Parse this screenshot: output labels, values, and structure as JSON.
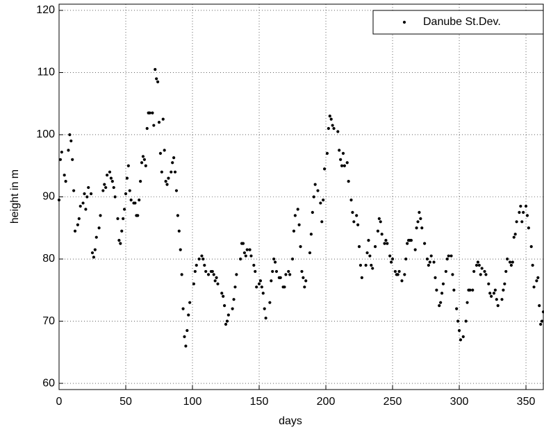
{
  "chart_data": {
    "type": "scatter",
    "xlabel": "days",
    "ylabel": "height in m",
    "xlim": [
      0,
      363
    ],
    "ylim": [
      59,
      121
    ],
    "xticks": [
      0,
      50,
      100,
      150,
      200,
      250,
      300,
      350
    ],
    "yticks": [
      60,
      70,
      80,
      90,
      100,
      110,
      120
    ],
    "grid": true,
    "legend": "northeast",
    "series": [
      {
        "name": "Danube St.Dev.",
        "color": "#000000",
        "x": [
          0,
          1,
          2,
          4,
          5,
          7,
          8,
          9,
          10,
          11,
          12,
          14,
          15,
          16,
          18,
          19,
          20,
          21,
          22,
          24,
          25,
          26,
          27,
          28,
          30,
          31,
          33,
          34,
          35,
          36,
          38,
          39,
          40,
          41,
          42,
          44,
          45,
          46,
          47,
          48,
          49,
          50,
          51,
          52,
          53,
          54,
          56,
          57,
          58,
          59,
          60,
          61,
          62,
          63,
          64,
          65,
          66,
          67,
          68,
          70,
          71,
          72,
          73,
          74,
          75,
          76,
          77,
          78,
          79,
          80,
          81,
          82,
          84,
          85,
          86,
          87,
          88,
          89,
          90,
          91,
          92,
          93,
          94,
          95,
          96,
          97,
          98,
          101,
          102,
          103,
          105,
          107,
          108,
          109,
          110,
          112,
          114,
          115,
          116,
          117,
          118,
          119,
          122,
          123,
          124,
          125,
          126,
          127,
          130,
          131,
          132,
          133,
          136,
          137,
          138,
          139,
          140,
          141,
          143,
          144,
          146,
          147,
          148,
          150,
          151,
          152,
          153,
          154,
          155,
          158,
          159,
          160,
          161,
          162,
          163,
          165,
          166,
          168,
          169,
          170,
          172,
          173,
          175,
          176,
          177,
          179,
          180,
          181,
          182,
          183,
          184,
          185,
          188,
          189,
          190,
          191,
          192,
          194,
          196,
          197,
          198,
          199,
          201,
          202,
          203,
          204,
          205,
          206,
          209,
          210,
          211,
          212,
          213,
          214,
          216,
          217,
          219,
          220,
          221,
          223,
          224,
          225,
          226,
          227,
          230,
          231,
          232,
          233,
          234,
          235,
          237,
          239,
          240,
          241,
          242,
          244,
          245,
          246,
          248,
          249,
          250,
          252,
          253,
          254,
          255,
          257,
          259,
          260,
          261,
          262,
          263,
          264,
          267,
          268,
          269,
          270,
          271,
          272,
          274,
          276,
          277,
          278,
          279,
          281,
          282,
          283,
          285,
          286,
          287,
          288,
          290,
          291,
          292,
          294,
          295,
          296,
          298,
          299,
          300,
          301,
          303,
          305,
          306,
          307,
          308,
          310,
          311,
          313,
          314,
          315,
          316,
          317,
          319,
          320,
          322,
          323,
          324,
          326,
          327,
          328,
          329,
          332,
          333,
          334,
          335,
          336,
          338,
          339,
          340,
          341,
          342,
          343,
          345,
          346,
          347,
          348,
          350,
          351,
          352,
          354,
          355,
          356,
          358,
          359,
          360,
          361,
          362,
          363
        ],
        "values": [
          89.5,
          96,
          97.2,
          93.5,
          92.5,
          97.5,
          100,
          99,
          96,
          91,
          84.5,
          85.5,
          86.5,
          88.5,
          89,
          90.5,
          88,
          90,
          91.5,
          90.5,
          81,
          80.3,
          81.5,
          83.5,
          85,
          87,
          91,
          92,
          91.5,
          93.5,
          94,
          93,
          92.5,
          91.5,
          90,
          86.5,
          83,
          82.5,
          84.5,
          86.5,
          88,
          90.5,
          93,
          95,
          91,
          89.5,
          89,
          89,
          87,
          87,
          89.5,
          92.5,
          95.5,
          96.5,
          96,
          95,
          101,
          103.5,
          103.5,
          103.5,
          101.5,
          110.5,
          109,
          108.5,
          102,
          97,
          94,
          102.5,
          97.5,
          92.5,
          92,
          93,
          94,
          95.5,
          96.3,
          94,
          91,
          87,
          84.5,
          81.5,
          77.5,
          72,
          67.5,
          66,
          68.5,
          71,
          73,
          76,
          78,
          79,
          80,
          80.5,
          80,
          79,
          78,
          77.5,
          78,
          78,
          77.5,
          76.5,
          77,
          76,
          74.5,
          74,
          72.5,
          69.5,
          70,
          71,
          72,
          73.5,
          75.5,
          77.5,
          80,
          82.5,
          82.5,
          81,
          80.5,
          81.5,
          81.5,
          80.5,
          79,
          78,
          75.5,
          76,
          76.5,
          75.5,
          74.5,
          72,
          70.5,
          73,
          76.5,
          78,
          80,
          79.5,
          78,
          77,
          77,
          75.5,
          75.5,
          77.5,
          78,
          77.5,
          80,
          84.5,
          87,
          88,
          85.5,
          82,
          78,
          77,
          75.5,
          76.5,
          81,
          84,
          87.5,
          90,
          92,
          91,
          89,
          86,
          89.5,
          94.5,
          97,
          101,
          103,
          102.5,
          101.5,
          101,
          100.5,
          97.5,
          96,
          95,
          97,
          95,
          95.5,
          92.5,
          89.5,
          87.5,
          86,
          87,
          85.5,
          82,
          79,
          77,
          79,
          81,
          83,
          80.5,
          79,
          78.5,
          82,
          84.5,
          86.5,
          86,
          84,
          82.5,
          83,
          82.5,
          80.5,
          79.5,
          80,
          78,
          77.5,
          77.5,
          78,
          76.5,
          77.5,
          80,
          82.5,
          83,
          83,
          83,
          81.5,
          85,
          86,
          87.5,
          86.5,
          85,
          82.5,
          80,
          79,
          79.5,
          80.5,
          79.5,
          77,
          75,
          72.5,
          73,
          74.5,
          76,
          78,
          80,
          80.5,
          80.5,
          77.5,
          75,
          72,
          70,
          68.5,
          67,
          67.5,
          70,
          73,
          75,
          75,
          75,
          78,
          79,
          79.5,
          79,
          77.5,
          78.5,
          78,
          77.5,
          76,
          74.5,
          74,
          74.5,
          75,
          73.5,
          72.5,
          73.5,
          75,
          76,
          78,
          80,
          79.5,
          79,
          79.5,
          83.5,
          84,
          86,
          87.5,
          88.5,
          86,
          87.5,
          88.5,
          87,
          85,
          82,
          79,
          75.5,
          76.5,
          77,
          72.5,
          69.5,
          70,
          71.5
        ]
      }
    ]
  }
}
